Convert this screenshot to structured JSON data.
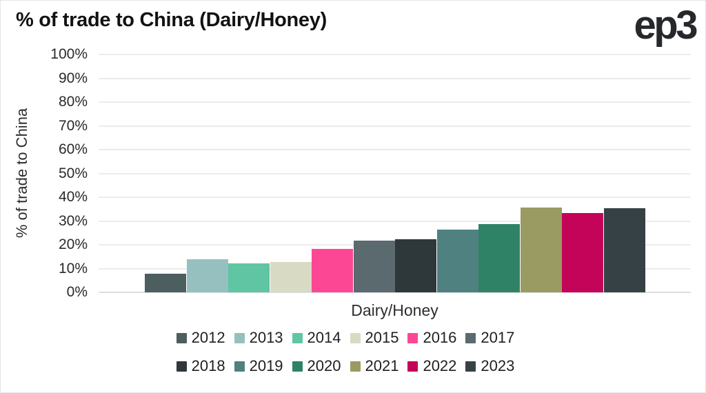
{
  "page": {
    "title": "% of trade to China (Dairy/Honey)",
    "logo": "ep3"
  },
  "chart_data": {
    "type": "bar",
    "title": "% of trade to China (Dairy/Honey)",
    "categories": [
      "Dairy/Honey"
    ],
    "xlabel": "Dairy/Honey",
    "ylabel": "% of trade to China",
    "ylim": [
      0,
      100
    ],
    "y_tick_step": 10,
    "y_tick_labels": [
      "0%",
      "10%",
      "20%",
      "30%",
      "40%",
      "50%",
      "60%",
      "70%",
      "80%",
      "90%",
      "100%"
    ],
    "grid": true,
    "legend_position": "bottom",
    "legend_rows": [
      [
        "2012",
        "2013",
        "2014",
        "2015",
        "2016",
        "2017"
      ],
      [
        "2018",
        "2019",
        "2020",
        "2021",
        "2022",
        "2023"
      ]
    ],
    "series": [
      {
        "name": "2012",
        "values": [
          7.8
        ],
        "color": "#4d5e61"
      },
      {
        "name": "2013",
        "values": [
          14.0
        ],
        "color": "#96c0bf"
      },
      {
        "name": "2014",
        "values": [
          12.3
        ],
        "color": "#60c5a3"
      },
      {
        "name": "2015",
        "values": [
          12.8
        ],
        "color": "#d8dac4"
      },
      {
        "name": "2016",
        "values": [
          18.2
        ],
        "color": "#fc4795"
      },
      {
        "name": "2017",
        "values": [
          21.6
        ],
        "color": "#5a6a6f"
      },
      {
        "name": "2018",
        "values": [
          22.4
        ],
        "color": "#2e383b"
      },
      {
        "name": "2019",
        "values": [
          26.5
        ],
        "color": "#4e8180"
      },
      {
        "name": "2020",
        "values": [
          28.7
        ],
        "color": "#2f8266"
      },
      {
        "name": "2021",
        "values": [
          35.8
        ],
        "color": "#9a9b62"
      },
      {
        "name": "2022",
        "values": [
          33.2
        ],
        "color": "#c40459"
      },
      {
        "name": "2023",
        "values": [
          35.3
        ],
        "color": "#364145"
      }
    ]
  }
}
